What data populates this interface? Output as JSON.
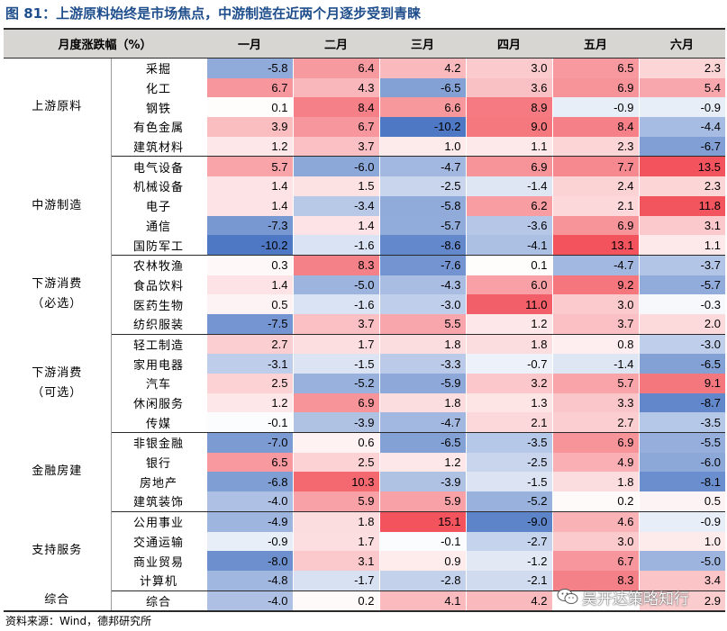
{
  "title": "图 81：上游原料始终是市场焦点，中游制造在近两个月逐步受到青睐",
  "source": "资料来源：Wind，德邦研究所",
  "watermark": {
    "text": "吴开达策略知行",
    "icon": "wechat-icon"
  },
  "colors": {
    "positive_max": "#f2535c",
    "negative_max": "#4e78c4",
    "neutral": "#ffffff",
    "header_bg": "#d8d6d3",
    "title": "#1f4e8c"
  },
  "table": {
    "corner_label": "月度涨跌幅（%）",
    "months": [
      "一月",
      "二月",
      "三月",
      "四月",
      "五月",
      "六月"
    ],
    "groups": [
      {
        "name": "上游原料",
        "rows": [
          {
            "industry": "采掘",
            "values": [
              "-5.8",
              "6.4",
              "4.2",
              "3.0",
              "6.5",
              "2.3"
            ]
          },
          {
            "industry": "化工",
            "values": [
              "6.7",
              "4.3",
              "-6.5",
              "3.6",
              "6.9",
              "5.4"
            ]
          },
          {
            "industry": "钢铁",
            "values": [
              "0.1",
              "8.4",
              "6.6",
              "8.9",
              "-0.9",
              "-0.9"
            ]
          },
          {
            "industry": "有色金属",
            "values": [
              "3.9",
              "6.7",
              "-10.2",
              "9.0",
              "8.4",
              "-4.4"
            ]
          },
          {
            "industry": "建筑材料",
            "values": [
              "1.2",
              "3.7",
              "1.0",
              "1.1",
              "2.3",
              "-6.7"
            ]
          }
        ]
      },
      {
        "name": "中游制造",
        "rows": [
          {
            "industry": "电气设备",
            "values": [
              "5.7",
              "-6.0",
              "-4.7",
              "6.9",
              "7.7",
              "13.5"
            ]
          },
          {
            "industry": "机械设备",
            "values": [
              "1.4",
              "1.5",
              "-2.5",
              "-1.4",
              "2.4",
              "2.3"
            ]
          },
          {
            "industry": "电子",
            "values": [
              "1.4",
              "-3.4",
              "-5.8",
              "6.2",
              "2.1",
              "11.8"
            ]
          },
          {
            "industry": "通信",
            "values": [
              "-7.3",
              "1.4",
              "-5.7",
              "-3.6",
              "6.9",
              "3.1"
            ]
          },
          {
            "industry": "国防军工",
            "values": [
              "-10.2",
              "-1.6",
              "-8.6",
              "-4.1",
              "13.1",
              "1.1"
            ]
          }
        ]
      },
      {
        "name": "下游消费\n（必选）",
        "rows": [
          {
            "industry": "农林牧渔",
            "values": [
              "0.3",
              "8.3",
              "-7.6",
              "0.1",
              "-4.7",
              "-3.7"
            ]
          },
          {
            "industry": "食品饮料",
            "values": [
              "1.4",
              "-5.0",
              "-4.3",
              "6.0",
              "9.2",
              "-5.7"
            ]
          },
          {
            "industry": "医药生物",
            "values": [
              "0.5",
              "-1.6",
              "-3.0",
              "11.0",
              "3.0",
              "-0.3"
            ]
          },
          {
            "industry": "纺织服装",
            "values": [
              "-7.5",
              "3.7",
              "5.5",
              "1.2",
              "3.7",
              "2.0"
            ]
          }
        ]
      },
      {
        "name": "下游消费\n（可选）",
        "rows": [
          {
            "industry": "轻工制造",
            "values": [
              "2.7",
              "1.7",
              "1.8",
              "1.8",
              "0.8",
              "-3.0"
            ]
          },
          {
            "industry": "家用电器",
            "values": [
              "-3.1",
              "-1.5",
              "-3.3",
              "-0.7",
              "-1.4",
              "-6.5"
            ]
          },
          {
            "industry": "汽车",
            "values": [
              "2.5",
              "-5.2",
              "-5.9",
              "3.2",
              "5.7",
              "9.1"
            ]
          },
          {
            "industry": "休闲服务",
            "values": [
              "1.2",
              "6.9",
              "1.8",
              "1.3",
              "3.3",
              "-8.7"
            ]
          },
          {
            "industry": "传媒",
            "values": [
              "-0.1",
              "-3.9",
              "-4.7",
              "2.1",
              "2.7",
              "-3.5"
            ]
          }
        ]
      },
      {
        "name": "金融房建",
        "rows": [
          {
            "industry": "非银金融",
            "values": [
              "-7.0",
              "0.6",
              "-6.5",
              "-3.5",
              "6.9",
              "-5.5"
            ]
          },
          {
            "industry": "银行",
            "values": [
              "6.5",
              "2.5",
              "1.2",
              "-2.5",
              "4.9",
              "-6.0"
            ]
          },
          {
            "industry": "房地产",
            "values": [
              "-6.8",
              "10.3",
              "-3.9",
              "-1.5",
              "1.8",
              "-8.1"
            ]
          },
          {
            "industry": "建筑装饰",
            "values": [
              "-4.0",
              "5.9",
              "5.9",
              "-5.2",
              "0.2",
              "0.5"
            ]
          }
        ]
      },
      {
        "name": "支持服务",
        "rows": [
          {
            "industry": "公用事业",
            "values": [
              "-4.9",
              "1.8",
              "15.1",
              "-9.0",
              "4.6",
              "-0.9"
            ]
          },
          {
            "industry": "交通运输",
            "values": [
              "-0.9",
              "1.7",
              "-0.1",
              "-2.7",
              "3.0",
              "1.0"
            ]
          },
          {
            "industry": "商业贸易",
            "values": [
              "-8.0",
              "3.1",
              "0.9",
              "-1.2",
              "6.7",
              "-5.0"
            ]
          },
          {
            "industry": "计算机",
            "values": [
              "-4.8",
              "-1.7",
              "-2.8",
              "-2.1",
              "8.3",
              "3.4"
            ]
          }
        ]
      },
      {
        "name": "综合",
        "rows": [
          {
            "industry": "综合",
            "values": [
              "-4.0",
              "0.2",
              "4.1",
              "4.2",
              "",
              "2.9"
            ]
          }
        ]
      }
    ]
  }
}
